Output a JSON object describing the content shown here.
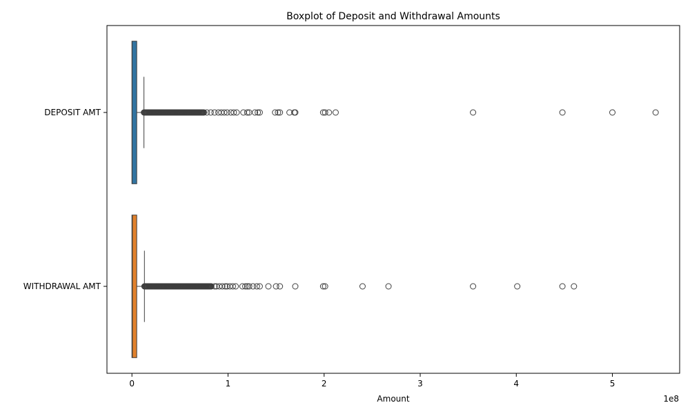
{
  "chart_data": {
    "type": "boxplot",
    "orientation": "horizontal",
    "title": "Boxplot of Deposit and Withdrawal Amounts",
    "xlabel": "Amount",
    "ylabel": "",
    "x_scale_label": "1e8",
    "xlim": [
      -0.26,
      5.7
    ],
    "x_ticks": [
      0,
      1,
      2,
      3,
      4,
      5
    ],
    "x_tick_labels": [
      "0",
      "1",
      "2",
      "3",
      "4",
      "5"
    ],
    "grid": false,
    "legend": null,
    "series": [
      {
        "name": "DEPOSIT AMT",
        "color": "#3274a1",
        "min": 0.0,
        "q1": 0.0,
        "median": 0.002,
        "q3": 0.05,
        "max": 0.125,
        "dense_outlier_range": [
          0.125,
          0.75
        ],
        "outliers": [
          0.78,
          0.82,
          0.86,
          0.9,
          0.93,
          0.96,
          0.99,
          1.03,
          1.06,
          1.09,
          1.16,
          1.2,
          1.22,
          1.28,
          1.31,
          1.33,
          1.49,
          1.52,
          1.54,
          1.64,
          1.69,
          1.7,
          1.99,
          2.01,
          2.05,
          2.12,
          3.55,
          4.48,
          5.0,
          5.45
        ]
      },
      {
        "name": "WITHDRAWAL AMT",
        "color": "#e1812c",
        "min": 0.0,
        "q1": 0.0,
        "median": 0.005,
        "q3": 0.05,
        "max": 0.13,
        "dense_outlier_range": [
          0.13,
          0.83
        ],
        "outliers": [
          0.86,
          0.88,
          0.91,
          0.94,
          0.97,
          0.99,
          1.02,
          1.05,
          1.08,
          1.15,
          1.18,
          1.2,
          1.22,
          1.26,
          1.3,
          1.33,
          1.42,
          1.5,
          1.54,
          1.7,
          1.99,
          2.01,
          2.4,
          2.67,
          3.55,
          4.01,
          4.48,
          4.6
        ]
      }
    ]
  }
}
